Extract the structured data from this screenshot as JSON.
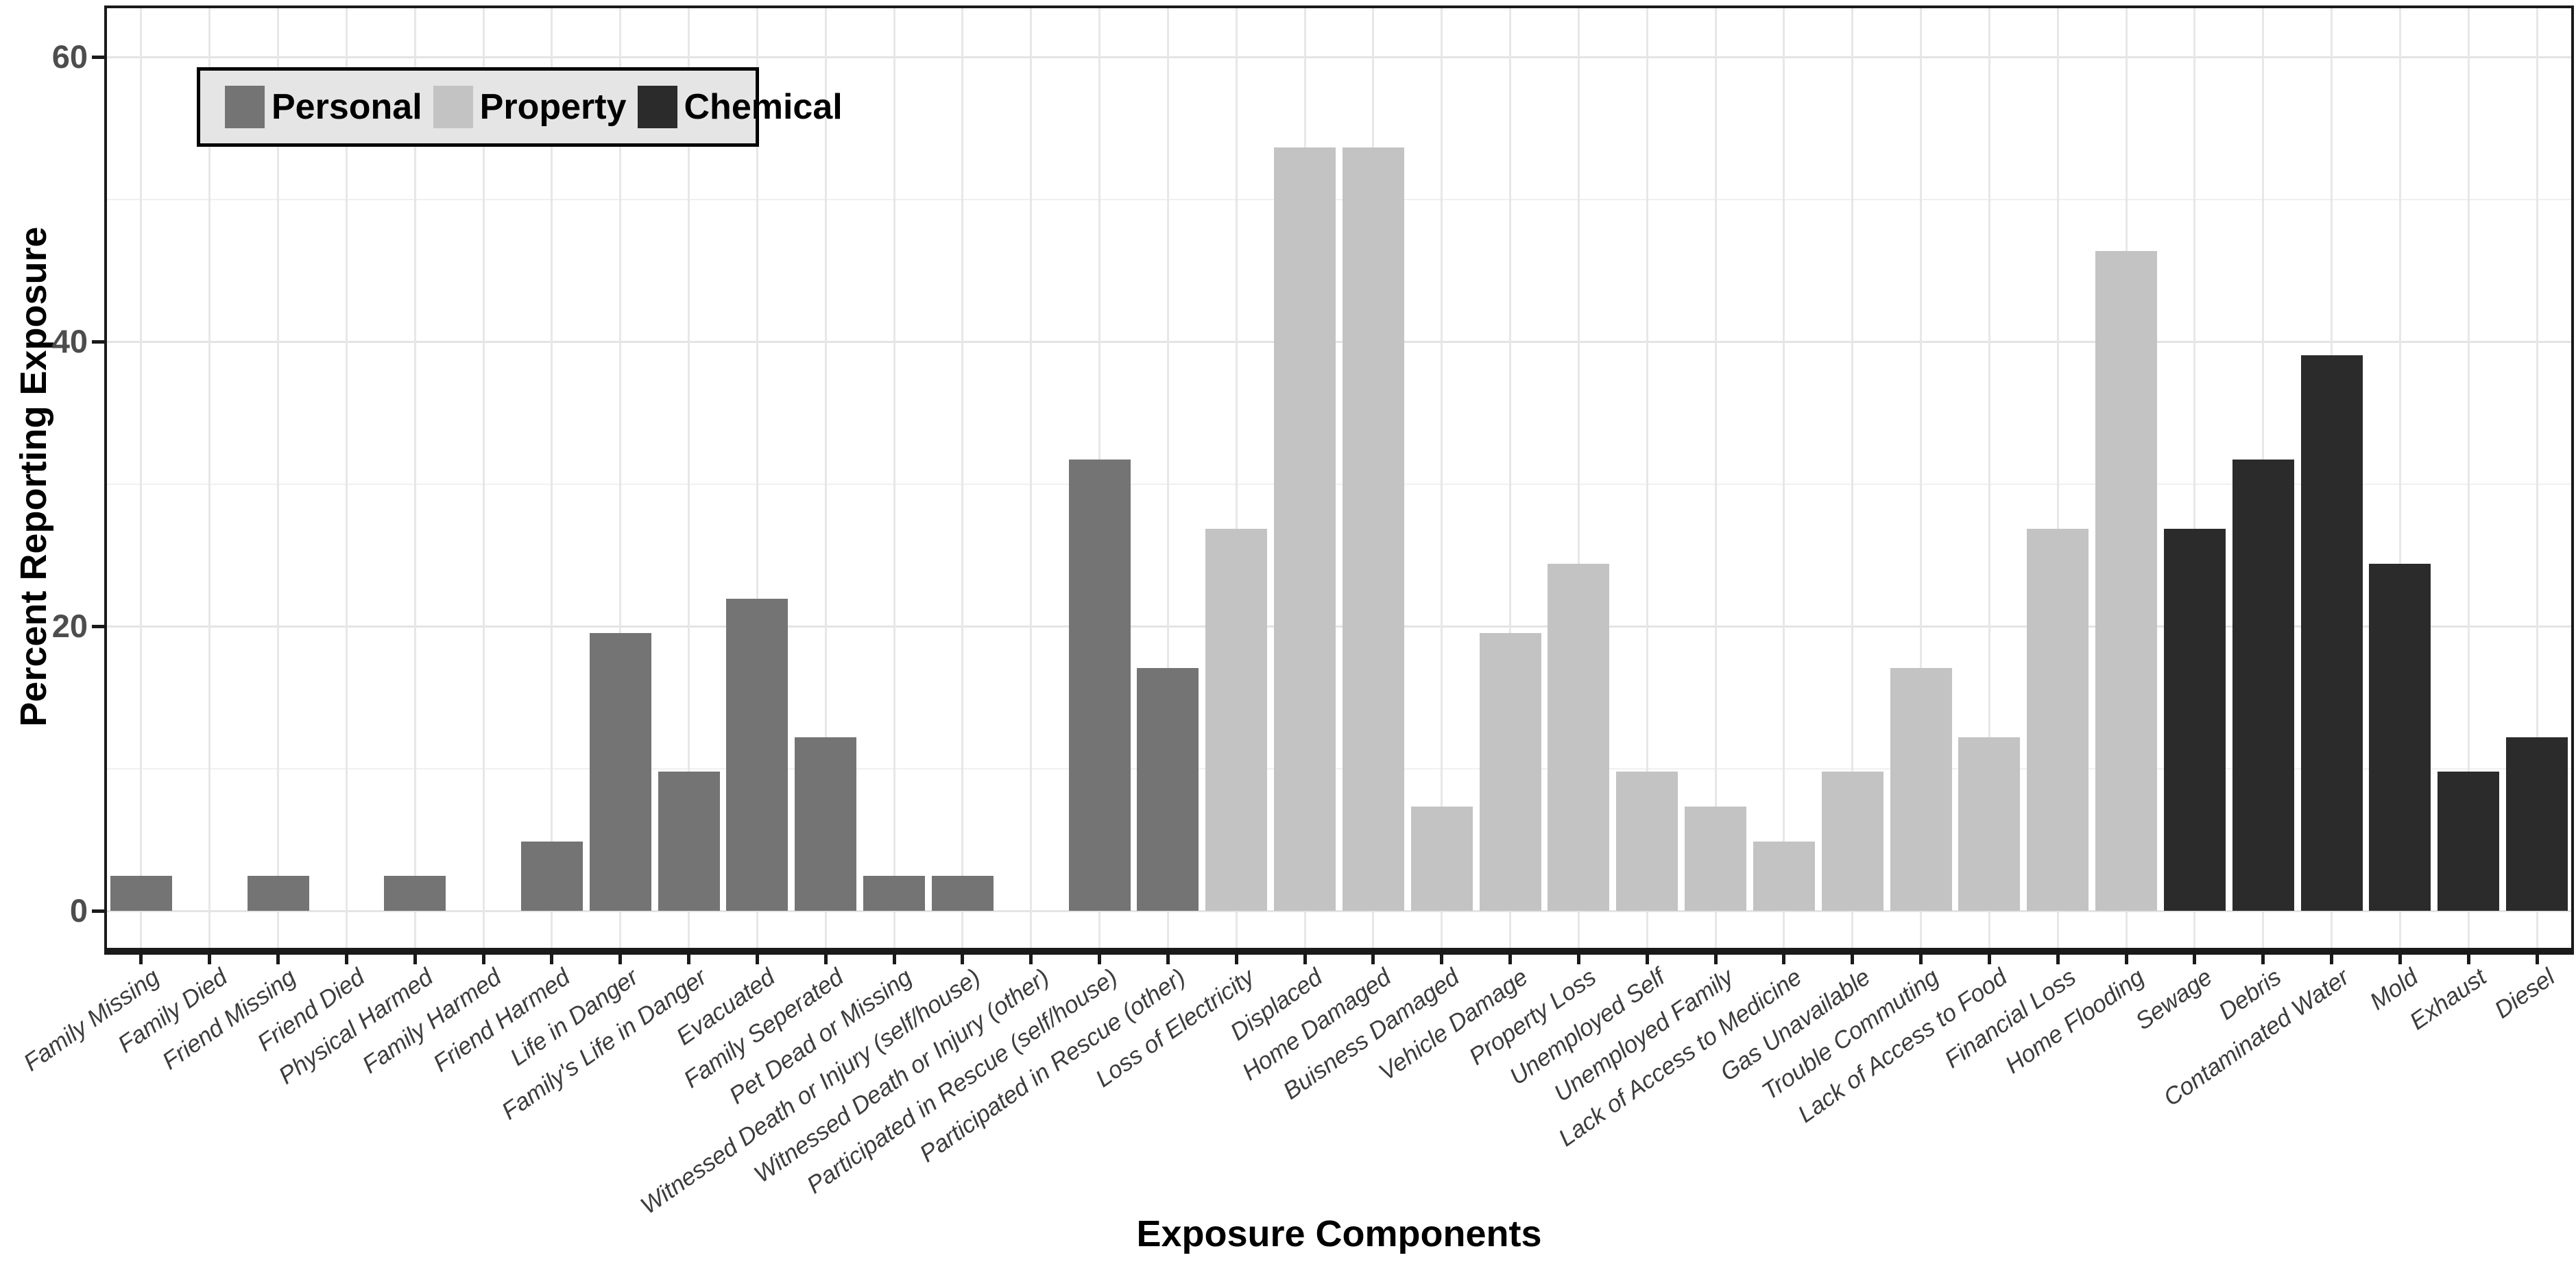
{
  "chart_data": {
    "type": "bar",
    "title": "",
    "xlabel": "Exposure Components",
    "ylabel": "Percent Reporting Exposure",
    "ylim": [
      0,
      63
    ],
    "yticks": [
      0,
      20,
      40,
      60
    ],
    "yticks_minor": [
      10,
      30,
      50
    ],
    "grid": "on",
    "legend_position": "top-left-inside",
    "legend_title": "",
    "groups": [
      {
        "name": "Personal",
        "color": "#747474"
      },
      {
        "name": "Property",
        "color": "#C3C3C3"
      },
      {
        "name": "Chemical",
        "color": "#2B2B2B"
      }
    ],
    "bars": [
      {
        "label": "Family Missing",
        "group": "Personal",
        "value": 2.44
      },
      {
        "label": "Family Died",
        "group": "Personal",
        "value": 0
      },
      {
        "label": "Friend Missing",
        "group": "Personal",
        "value": 2.44
      },
      {
        "label": "Friend Died",
        "group": "Personal",
        "value": 0
      },
      {
        "label": "Physical Harmed",
        "group": "Personal",
        "value": 2.44
      },
      {
        "label": "Family Harmed",
        "group": "Personal",
        "value": 0
      },
      {
        "label": "Friend Harmed",
        "group": "Personal",
        "value": 4.88
      },
      {
        "label": "Life in Danger",
        "group": "Personal",
        "value": 19.51
      },
      {
        "label": "Family's Life in Danger",
        "group": "Personal",
        "value": 9.76
      },
      {
        "label": "Evacuated",
        "group": "Personal",
        "value": 21.95
      },
      {
        "label": "Family Seperated",
        "group": "Personal",
        "value": 12.2
      },
      {
        "label": "Pet Dead or Missing",
        "group": "Personal",
        "value": 2.44
      },
      {
        "label": "Witnessed Death or Injury (self/house)",
        "group": "Personal",
        "value": 2.44
      },
      {
        "label": "Witnessed Death or Injury (other)",
        "group": "Personal",
        "value": 0
      },
      {
        "label": "Participated in Rescue (self/house)",
        "group": "Personal",
        "value": 31.71
      },
      {
        "label": "Participated in Rescue (other)",
        "group": "Personal",
        "value": 17.07
      },
      {
        "label": "Loss of Electricity",
        "group": "Property",
        "value": 26.83
      },
      {
        "label": "Displaced",
        "group": "Property",
        "value": 53.66
      },
      {
        "label": "Home Damaged",
        "group": "Property",
        "value": 53.66
      },
      {
        "label": "Buisness Damaged",
        "group": "Property",
        "value": 7.32
      },
      {
        "label": "Vehicle Damage",
        "group": "Property",
        "value": 19.51
      },
      {
        "label": "Property Loss",
        "group": "Property",
        "value": 24.39
      },
      {
        "label": "Unemployed Self",
        "group": "Property",
        "value": 9.76
      },
      {
        "label": "Unemployed Family",
        "group": "Property",
        "value": 7.32
      },
      {
        "label": "Lack of Access to Medicine",
        "group": "Property",
        "value": 4.88
      },
      {
        "label": "Gas Unavailable",
        "group": "Property",
        "value": 9.76
      },
      {
        "label": "Trouble Commuting",
        "group": "Property",
        "value": 17.07
      },
      {
        "label": "Lack of Access to Food",
        "group": "Property",
        "value": 12.2
      },
      {
        "label": "Financial Loss",
        "group": "Property",
        "value": 26.83
      },
      {
        "label": "Home Flooding",
        "group": "Property",
        "value": 46.34
      },
      {
        "label": "Sewage",
        "group": "Chemical",
        "value": 26.83
      },
      {
        "label": "Debris",
        "group": "Chemical",
        "value": 31.71
      },
      {
        "label": "Contaminated Water",
        "group": "Chemical",
        "value": 39.02
      },
      {
        "label": "Mold",
        "group": "Chemical",
        "value": 24.39
      },
      {
        "label": "Exhaust",
        "group": "Chemical",
        "value": 9.76
      },
      {
        "label": "Diesel",
        "group": "Chemical",
        "value": 12.2
      }
    ]
  },
  "style": {
    "panel_border_color": "#1A1A1A",
    "grid_major_color": "#E4E4E4",
    "grid_minor_color": "#F0F0F0",
    "axis_tick_color": "#1A1A1A",
    "ytick_text_color": "#4D4D4D",
    "xtick_text_color": "#3D3D3D",
    "legend_background": "#E5E5E5",
    "legend_border": "#000000",
    "background": "#FFFFFF"
  }
}
